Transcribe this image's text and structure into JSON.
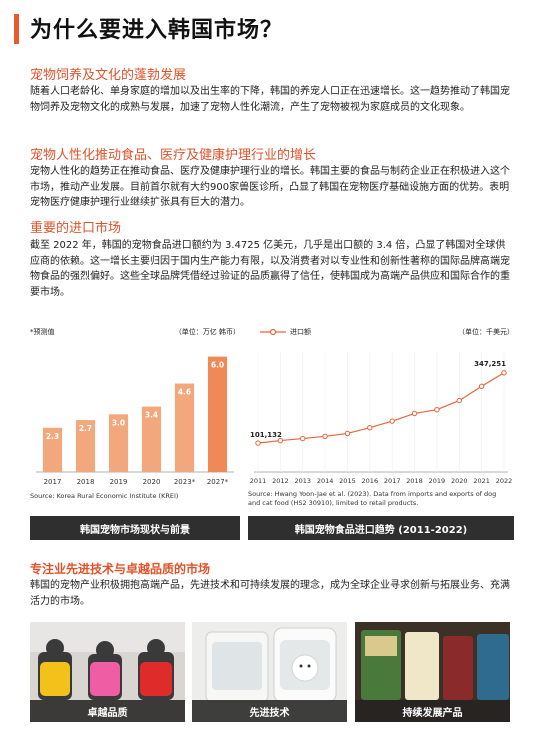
{
  "title": "为什么要进入韩国市场？",
  "sections": [
    {
      "heading": "宠物饲养及文化的蓬勃发展",
      "body": "随着人口老龄化、单身家庭的增加以及出生率的下降，韩国的养宠人口正在迅速增长。这一趋势推动了韩国宠物饲养及宠物文化的成熟与发展，加速了宠物人性化潮流，产生了宠物被视为家庭成员的文化现象。"
    },
    {
      "heading": "宠物人性化推动食品、医疗及健康护理行业的增长",
      "body": "宠物人性化的趋势正在推动食品、医疗及健康护理行业的增长。韩国主要的食品与制药企业正在积极进入这个市场，推动产业发展。目前首尔就有大约900家兽医诊所，凸显了韩国在宠物医疗基础设施方面的优势。表明宠物医疗健康护理行业继续扩张具有巨大的潜力。"
    },
    {
      "heading": "重要的进口市场",
      "body": "截至 2022 年，韩国的宠物食品进口额约为 3.4725 亿美元，几乎是出口额的 3.4 倍，凸显了韩国对全球供应商的依赖。这一增长主要归因于国内生产能力有限，以及消费者对以专业性和创新性著称的国际品牌高端宠物食品的强烈偏好。这些全球品牌凭借经过验证的品质赢得了信任，使韩国成为高端产品供应和国际合作的重要市场。"
    }
  ],
  "chart_data": [
    {
      "type": "bar",
      "note": "*预测值",
      "unit": "（单位：万亿 韩币）",
      "categories": [
        "2017",
        "2018",
        "2019",
        "2020",
        "2023*",
        "2027*"
      ],
      "values": [
        2.3,
        2.7,
        3.0,
        3.4,
        4.6,
        6.0
      ],
      "value_labels": [
        "2.3",
        "2.7",
        "3.0",
        "3.4",
        "4.6",
        "6.0"
      ],
      "ylim": [
        0,
        6.5
      ],
      "color": "#f3a77d",
      "highlight_color": "#ef8a57",
      "source": "Source: Korea Rural Economic Institute (KREI)",
      "caption": "韩国宠物市场现状与前景"
    },
    {
      "type": "line",
      "legend": "进口额",
      "unit": "（单位：千美元）",
      "x": [
        "2011",
        "2012",
        "2013",
        "2014",
        "2015",
        "2016",
        "2017",
        "2018",
        "2019",
        "2020",
        "2021",
        "2022"
      ],
      "values": [
        101132,
        110000,
        117000,
        125000,
        135000,
        155000,
        178000,
        205000,
        218000,
        250000,
        300000,
        347251
      ],
      "value_labels": {
        "first": "101,132",
        "last": "347,251"
      },
      "ylim": [
        0,
        420000
      ],
      "color": "#e8653a",
      "source": "Source: Hwang Yoon-Jae et al. (2023). Data from imports and exports of dog and cat food (HS2 30910), limited to retail products.",
      "caption": "韩国宠物食品进口趋势 (2011-2022)"
    }
  ],
  "bottom": {
    "heading": "专注业先进技术与卓越品质的市场",
    "body": "韩国的宠物产业积极拥抱高端产品，先进技术和可持续发展的理念，成为全球企业寻求创新与拓展业务、充满活力的市场。",
    "photos": [
      {
        "label": "卓越品质",
        "icon": "pet-clothing-photo"
      },
      {
        "label": "先进技术",
        "icon": "pet-dryer-photo"
      },
      {
        "label": "持续发展产品",
        "icon": "pet-food-shelf-photo"
      }
    ]
  }
}
